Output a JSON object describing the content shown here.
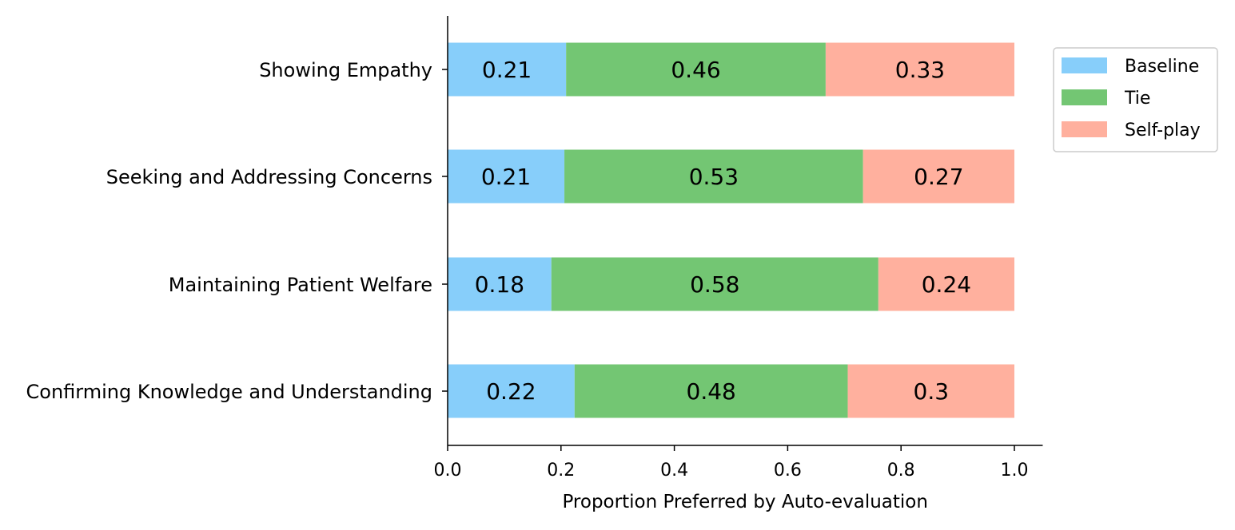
{
  "chart_data": {
    "type": "bar",
    "orientation": "horizontal",
    "stacked": true,
    "categories": [
      "Showing Empathy",
      "Seeking and Addressing Concerns",
      "Maintaining Patient Welfare",
      "Confirming Knowledge and Understanding"
    ],
    "series": [
      {
        "name": "Baseline",
        "color": "#87CEFA",
        "values": [
          0.209,
          0.206,
          0.183,
          0.224
        ],
        "labels": [
          "0.21",
          "0.21",
          "0.18",
          "0.22"
        ]
      },
      {
        "name": "Tie",
        "color": "#73C673",
        "values": [
          0.458,
          0.527,
          0.577,
          0.482
        ],
        "labels": [
          "0.46",
          "0.53",
          "0.58",
          "0.48"
        ]
      },
      {
        "name": "Self-play",
        "color": "#FFB09E",
        "values": [
          0.333,
          0.267,
          0.24,
          0.294
        ],
        "labels": [
          "0.33",
          "0.27",
          "0.24",
          "0.3"
        ]
      }
    ],
    "xlabel": "Proportion Preferred by Auto-evaluation",
    "ylabel": "",
    "xlim": [
      0,
      1.05
    ],
    "xticks": [
      0.0,
      0.2,
      0.4,
      0.6,
      0.8,
      1.0
    ],
    "xtick_labels": [
      "0.0",
      "0.2",
      "0.4",
      "0.6",
      "0.8",
      "1.0"
    ],
    "grid": false,
    "legend": "upper-right-outside"
  }
}
